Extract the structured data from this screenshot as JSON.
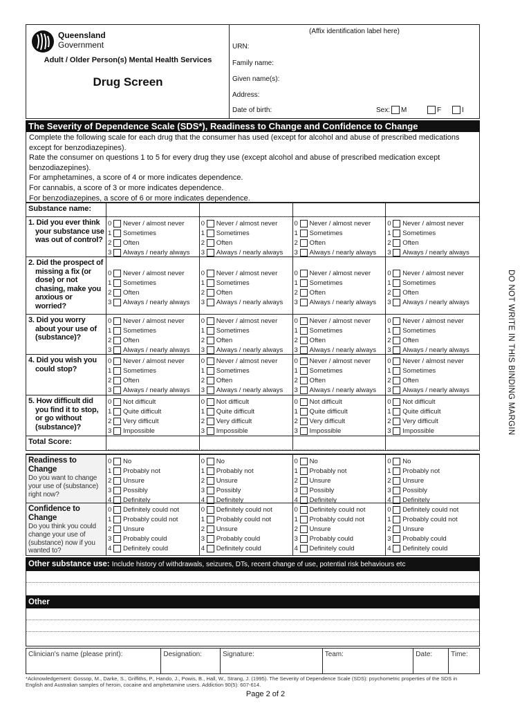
{
  "header": {
    "logo_text": [
      "Queensland",
      "Government"
    ],
    "service": "Adult / Older Person(s) Mental Health Services",
    "title": "Drug Screen",
    "affix": "(Affix identification label here)",
    "fields": [
      "URN:",
      "Family name:",
      "Given name(s):",
      "Address:",
      "Date of birth:"
    ],
    "sex_label": "Sex:",
    "sex_options": [
      "M",
      "F",
      "I"
    ]
  },
  "section_title": "The Severity of Dependence Scale (SDS*), Readiness to Change and Confidence to Change",
  "instructions": [
    "Complete the following scale for each drug that the consumer has used (except for alcohol and abuse of prescribed medications except for benzodiazepines).",
    "Rate the consumer on questions 1 to 5 for every drug they use (except alcohol and abuse of prescribed medication except benzodiazepines).",
    "For amphetamines, a score of 4 or more indicates dependence.",
    "For cannabis, a score of 3 or more indicates dependence.",
    "For benzodiazepines, a score of 6 or more indicates dependence."
  ],
  "substance_label": "Substance name:",
  "questions": [
    {
      "label": "1. Did you ever think your substance use was out of control?",
      "options": [
        "Never / almost never",
        "Sometimes",
        "Often",
        "Always / nearly always"
      ]
    },
    {
      "label": "2. Did the prospect of missing a fix (or dose) or not chasing, make you anxious or worried?",
      "options": [
        "Never / almost never",
        "Sometimes",
        "Often",
        "Always / nearly always"
      ]
    },
    {
      "label": "3. Did you worry about your use of (substance)?",
      "options": [
        "Never / almost never",
        "Sometimes",
        "Often",
        "Always / nearly always"
      ]
    },
    {
      "label": "4. Did you wish you could stop?",
      "options": [
        "Never / almost never",
        "Sometimes",
        "Often",
        "Always / nearly always"
      ]
    },
    {
      "label": "5. How difficult did you find it to stop, or go without (substance)?",
      "options": [
        "Not difficult",
        "Quite difficult",
        "Very difficult",
        "Impossible"
      ]
    }
  ],
  "total_label": "Total Score:",
  "readiness": {
    "title": "Readiness to Change",
    "text": "Do you want to change your use of (substance) right now?",
    "options": [
      "No",
      "Probably not",
      "Unsure",
      "Possibly",
      "Definitely"
    ]
  },
  "confidence": {
    "title": "Confidence to Change",
    "text": "Do you think you could change your use of (substance) now if you wanted to?",
    "options": [
      "Definitely could not",
      "Probably could not",
      "Unsure",
      "Probably could",
      "Definitely could"
    ]
  },
  "other_use": {
    "title": "Other substance use:",
    "text": "Include history of withdrawals, seizures, DTs, recent change of use, potential risk behaviours etc"
  },
  "other_title": "Other",
  "footer_fields": [
    "Clinician's name (please print):",
    "Designation:",
    "Signature:",
    "Team:",
    "Date:",
    "Time:"
  ],
  "acknowledgement": "*Acknowledgement: Gossop, M., Darke, S., Griffiths, P., Hando, J., Powis, B., Hall, W., Strang, J. (1995). The Severity of Dependence Scale (SDS): psychometric properties of the SDS in English and Australian samples of heroin, cocaine and amphetamine users. Addiction 90(5): 607-614.",
  "page": "Page 2 of 2",
  "margin_text": "DO NOT WRITE IN THIS BINDING MARGIN"
}
